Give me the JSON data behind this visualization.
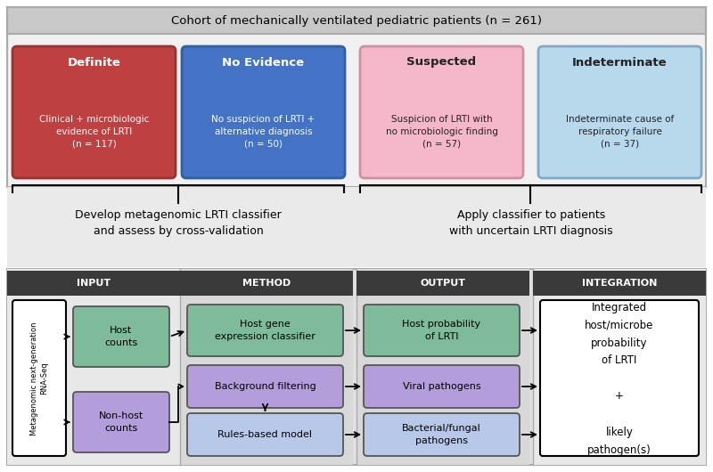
{
  "title": "Cohort of mechanically ventilated pediatric patients (ι = 261)",
  "title_text": "Cohort of mechanically ventilated pediatric patients (n = 261)",
  "title_bg": "#c8c8c8",
  "cohort_boxes": [
    {
      "title": "Definite",
      "text": "Clinical + microbiologic\nevidence of LRTI\n(n = 117)",
      "bg": "#bf4040",
      "border": "#993333",
      "text_color": "white",
      "title_color": "white"
    },
    {
      "title": "No Evidence",
      "text": "No suspicion of LRTI +\nalternative diagnosis\n(n = 50)",
      "bg": "#4472c4",
      "border": "#3060a0",
      "text_color": "white",
      "title_color": "white"
    },
    {
      "title": "Suspected",
      "text": "Suspicion of LRTI with\nno microbiologic finding\n(n = 57)",
      "bg": "#f4b8c8",
      "border": "#d090a0",
      "text_color": "#222222",
      "title_color": "#222222"
    },
    {
      "title": "Indeterminate",
      "text": "Indeterminate cause of\nrespiratory failure\n(n = 37)",
      "bg": "#b8d8ec",
      "border": "#80a8c8",
      "text_color": "#222222",
      "title_color": "#222222"
    }
  ],
  "left_label": "Develop metagenomic LRTI classifier\nand assess by cross-validation",
  "right_label": "Apply classifier to patients\nwith uncertain LRTI diagnosis",
  "section_headers": [
    "INPUT",
    "METHOD",
    "OUTPUT",
    "INTEGRATION"
  ],
  "section_header_bg": "#3a3a3a",
  "section_header_text": "white",
  "top_section_bg": "#f0f0f0",
  "middle_section_bg": "#e8e8e8",
  "col_bgs": [
    "#e0e0e0",
    "#d8d8d8",
    "#d8d8d8",
    "#e0e0e0"
  ],
  "input_box_text": "Metagenomic next-generation\nRNA-Seq",
  "host_counts_text": "Host\ncounts",
  "non_host_counts_text": "Non-host\ncounts",
  "host_counts_bg": "#7dbb9a",
  "non_host_counts_bg": "#b39ddb",
  "method_boxes": [
    {
      "text": "Host gene\nexpression classifier",
      "bg": "#7dbb9a"
    },
    {
      "text": "Background filtering",
      "bg": "#b39ddb"
    },
    {
      "text": "Rules-based model",
      "bg": "#b8c8e8"
    }
  ],
  "output_boxes": [
    {
      "text": "Host probability\nof LRTI",
      "bg": "#7dbb9a"
    },
    {
      "text": "Viral pathogens",
      "bg": "#b39ddb"
    },
    {
      "text": "Bacterial/fungal\npathogens",
      "bg": "#b8c8e8"
    }
  ],
  "integration_text": "Integrated\nhost/microbe\nprobability\nof LRTI\n\n+\n\nlikely\npathogen(s)"
}
